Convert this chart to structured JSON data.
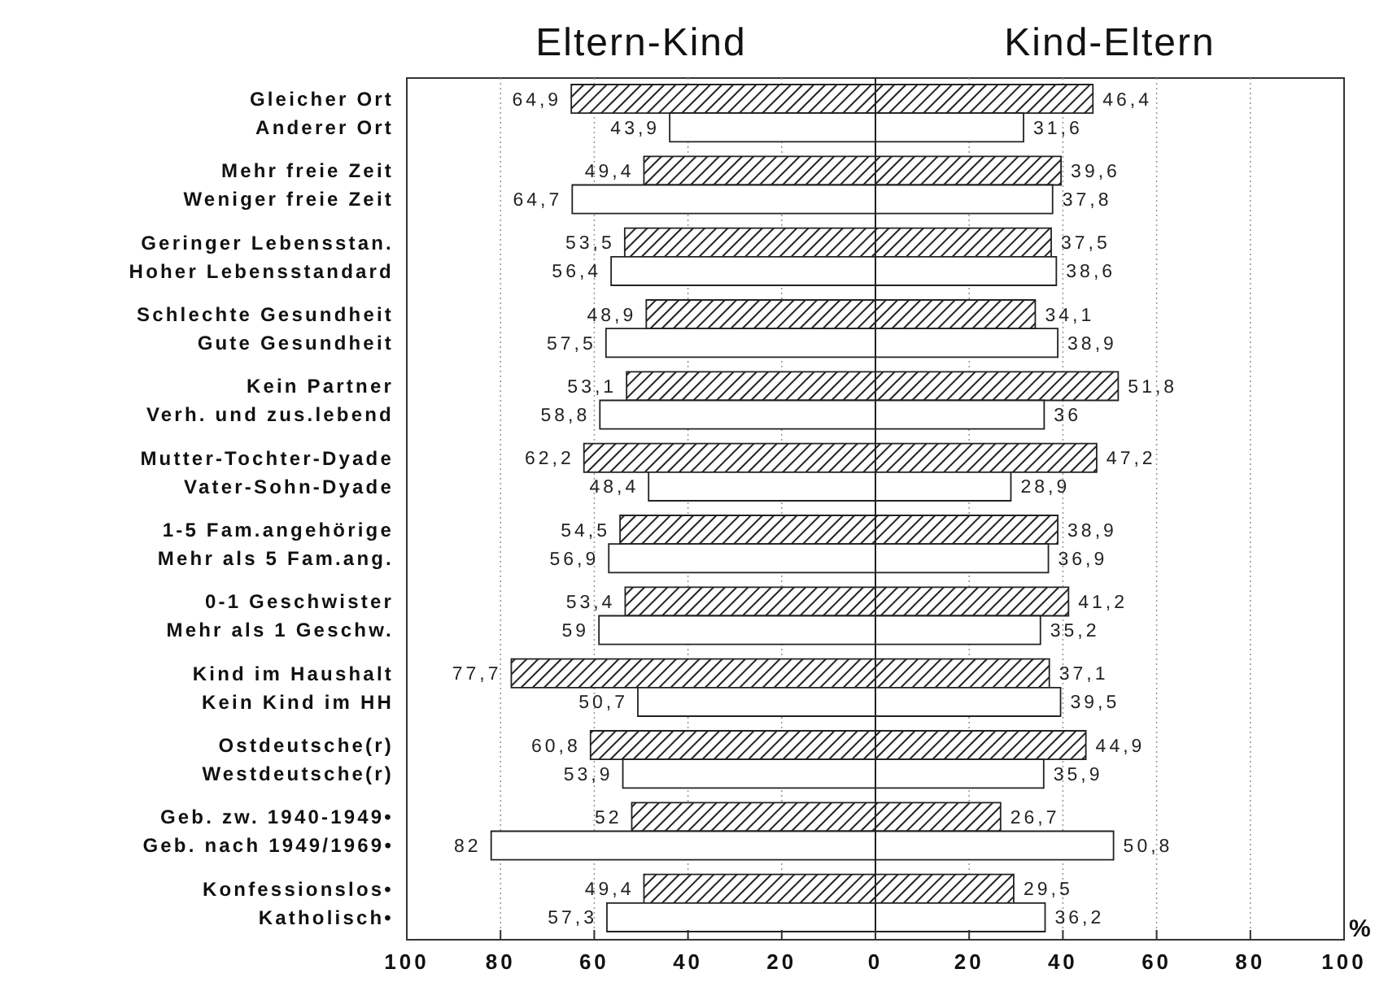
{
  "chart_data": [
    {
      "type": "bar",
      "orientation": "horizontal",
      "title": "Eltern-Kind",
      "categories": [
        "Gleicher Ort",
        "Anderer Ort",
        "Mehr freie Zeit",
        "Weniger freie Zeit",
        "Geringer Lebensstan.",
        "Hoher Lebensstandard",
        "Schlechte Gesundheit",
        "Gute Gesundheit",
        "Kein Partner",
        "Verh. und zus.lebend",
        "Mutter-Tochter-Dyade",
        "Vater-Sohn-Dyade",
        "1-5 Fam.angehörige",
        "Mehr als 5 Fam.ang.",
        "0-1 Geschwister",
        "Mehr als 1 Geschw.",
        "Kind im Haushalt",
        "Kein Kind im HH",
        "Ostdeutsche(r)",
        "Westdeutsche(r)",
        "Geb. zw. 1940-1949•",
        "Geb. nach 1949/1969•",
        "Konfessionslos•",
        "Katholisch•"
      ],
      "colors": [
        "#222222",
        "#ffffff",
        "#222222",
        "#ffffff",
        "#222222",
        "#ffffff",
        "#222222",
        "#ffffff",
        "#222222",
        "#ffffff",
        "#222222",
        "#ffffff",
        "#222222",
        "#ffffff",
        "#222222",
        "#ffffff",
        "#222222",
        "#ffffff",
        "#222222",
        "#ffffff",
        "#222222",
        "#ffffff",
        "#222222",
        "#ffffff"
      ],
      "values": [
        64.9,
        43.9,
        49.4,
        64.7,
        53.5,
        56.4,
        48.9,
        57.5,
        53.1,
        58.8,
        62.2,
        48.4,
        54.5,
        56.9,
        53.4,
        59,
        77.7,
        50.7,
        60.8,
        53.9,
        52,
        82,
        49.4,
        57.3
      ],
      "value_labels": [
        "64,9",
        "43,9",
        "49,4",
        "64,7",
        "53,5",
        "56,4",
        "48,9",
        "57,5",
        "53,1",
        "58,8",
        "62,2",
        "48,4",
        "54,5",
        "56,9",
        "53,4",
        "59",
        "77,7",
        "50,7",
        "60,8",
        "53,9",
        "52",
        "82",
        "49,4",
        "57,3"
      ],
      "xlim": [
        100,
        0
      ],
      "xticks": [
        100,
        80,
        60,
        40,
        20,
        0
      ],
      "grid": "x"
    },
    {
      "type": "bar",
      "orientation": "horizontal",
      "title": "Kind-Eltern",
      "xlabel": "%",
      "tick_labels": "x",
      "colors": [
        "#222222",
        "#ffffff",
        "#222222",
        "#ffffff",
        "#222222",
        "#ffffff",
        "#222222",
        "#ffffff",
        "#222222",
        "#ffffff",
        "#222222",
        "#ffffff",
        "#222222",
        "#ffffff",
        "#222222",
        "#ffffff",
        "#222222",
        "#ffffff",
        "#222222",
        "#ffffff",
        "#222222",
        "#ffffff",
        "#222222",
        "#ffffff"
      ],
      "values": [
        46.4,
        31.6,
        39.6,
        37.8,
        37.5,
        38.6,
        34.1,
        38.9,
        51.8,
        36,
        47.2,
        28.9,
        38.9,
        36.9,
        41.2,
        35.2,
        37.1,
        39.5,
        44.9,
        35.9,
        26.7,
        50.8,
        29.5,
        36.2
      ],
      "value_labels": [
        "46,4",
        "31,6",
        "39,6",
        "37,8",
        "37,5",
        "38,6",
        "34,1",
        "38,9",
        "51,8",
        "36",
        "47,2",
        "28,9",
        "38,9",
        "36,9",
        "41,2",
        "35,2",
        "37,1",
        "39,5",
        "44,9",
        "35,9",
        "26,7",
        "50,8",
        "29,5",
        "36,2"
      ],
      "xlim": [
        0,
        100
      ],
      "xticks": [
        {
          "value": 0,
          "label": null
        },
        20,
        40,
        60,
        80,
        100
      ],
      "grid": "x"
    }
  ]
}
